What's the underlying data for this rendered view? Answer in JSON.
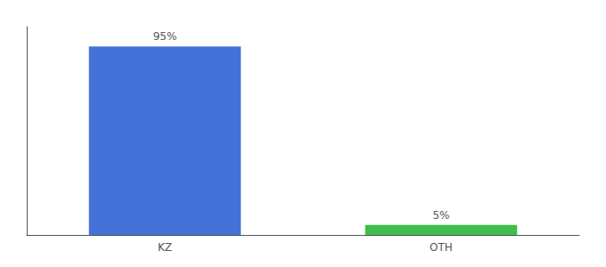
{
  "chart_data": {
    "type": "bar",
    "categories": [
      "KZ",
      "OTH"
    ],
    "values": [
      95,
      5
    ],
    "value_labels": [
      "95%",
      "5%"
    ],
    "colors": [
      "#4472D8",
      "#3DBF4A"
    ],
    "ylim": [
      0,
      105
    ],
    "grid": false,
    "data_labels": true,
    "tick_labels": "x"
  }
}
